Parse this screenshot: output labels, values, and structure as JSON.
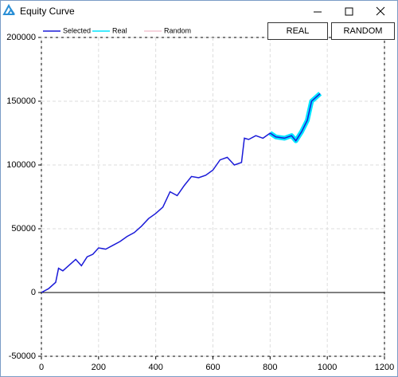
{
  "window": {
    "title": "Equity Curve"
  },
  "buttons": [
    "REAL",
    "RANDOM"
  ],
  "chart_data": {
    "type": "line",
    "x": [
      0,
      25,
      50,
      60,
      75,
      100,
      120,
      140,
      160,
      180,
      200,
      225,
      250,
      275,
      300,
      325,
      350,
      375,
      400,
      425,
      450,
      475,
      500,
      525,
      550,
      575,
      600,
      625,
      650,
      675,
      700,
      710,
      725,
      750,
      775,
      800,
      820,
      850,
      875,
      890,
      910,
      930,
      945,
      960,
      975
    ],
    "series": [
      {
        "name": "Selected",
        "color": "#1a1ad8",
        "values": [
          0,
          3000,
          8000,
          19000,
          17000,
          22000,
          26000,
          21000,
          28000,
          30000,
          35000,
          34000,
          37000,
          40000,
          44000,
          47000,
          52000,
          58000,
          62000,
          67000,
          79000,
          76000,
          84000,
          91000,
          90000,
          92000,
          96000,
          104000,
          106000,
          100000,
          102000,
          121000,
          120000,
          123000,
          121000,
          125000,
          122000,
          121000,
          123000,
          119000,
          126000,
          135000,
          150000,
          153000,
          156000
        ]
      },
      {
        "name": "Real",
        "color": "#00e5ff",
        "values": [
          null,
          null,
          null,
          null,
          null,
          null,
          null,
          null,
          null,
          null,
          null,
          null,
          null,
          null,
          null,
          null,
          null,
          null,
          null,
          null,
          null,
          null,
          null,
          null,
          null,
          null,
          null,
          null,
          null,
          null,
          null,
          null,
          null,
          null,
          null,
          125000,
          122000,
          121000,
          123000,
          119000,
          126000,
          135000,
          150000,
          153000,
          156000
        ]
      },
      {
        "name": "Random",
        "color": "#f4c6d4",
        "values": [
          null,
          null,
          null,
          null,
          null,
          null,
          null,
          null,
          null,
          null,
          null,
          null,
          null,
          null,
          null,
          null,
          null,
          null,
          null,
          null,
          null,
          null,
          null,
          null,
          null,
          null,
          null,
          null,
          null,
          null,
          null,
          null,
          null,
          null,
          null,
          null,
          null,
          null,
          null,
          null,
          null,
          null,
          null,
          null,
          null
        ]
      }
    ],
    "xlim": [
      0,
      1200
    ],
    "xticks": [
      0,
      200,
      400,
      600,
      800,
      1000,
      1200
    ],
    "ylim": [
      -50000,
      200000
    ],
    "yticks": [
      -50000,
      0,
      50000,
      100000,
      150000,
      200000
    ],
    "grid": true
  }
}
